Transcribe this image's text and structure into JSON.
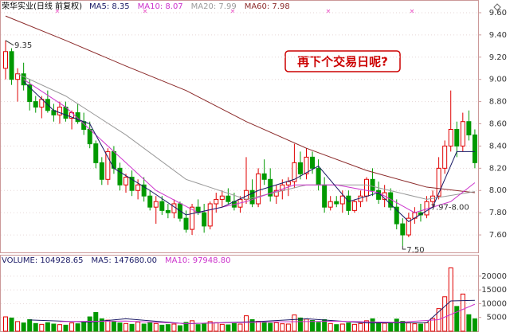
{
  "chart_data": {
    "type": "candlestick",
    "title": "荣华实业(日线 前复权)",
    "header": [
      {
        "text": "MA5: 8.35",
        "color": "#1a1a66"
      },
      {
        "text": "MA10: 8.07",
        "color": "#cc33cc"
      },
      {
        "text": "MA20: 7.99",
        "color": "#999999"
      },
      {
        "text": "MA60: 7.98",
        "color": "#8b2a2a"
      }
    ],
    "up_color": "#e00000",
    "down_color": "#009900",
    "ylim": [
      7.45,
      9.7
    ],
    "yticks": [
      {
        "value": 7.6,
        "label": "7.60"
      },
      {
        "value": 7.8,
        "label": "7.80"
      },
      {
        "value": 8.0,
        "label": "8.00"
      },
      {
        "value": 8.2,
        "label": "8.20"
      },
      {
        "value": 8.4,
        "label": "8.40"
      },
      {
        "value": 8.6,
        "label": "8.60"
      },
      {
        "value": 8.8,
        "label": "8.80"
      },
      {
        "value": 9.0,
        "label": "9.00"
      },
      {
        "value": 9.2,
        "label": "9.20"
      },
      {
        "value": 9.4,
        "label": "9.40"
      },
      {
        "value": 9.6,
        "label": "9.60"
      }
    ],
    "grid": true,
    "candles": [
      [
        9.1,
        9.35,
        9.0,
        9.25
      ],
      [
        9.25,
        9.28,
        8.95,
        9.0
      ],
      [
        9.0,
        9.1,
        8.8,
        9.05
      ],
      [
        9.05,
        9.15,
        8.9,
        8.95
      ],
      [
        8.95,
        9.0,
        8.72,
        8.8
      ],
      [
        8.8,
        8.85,
        8.7,
        8.75
      ],
      [
        8.75,
        8.85,
        8.65,
        8.82
      ],
      [
        8.82,
        8.9,
        8.7,
        8.72
      ],
      [
        8.72,
        8.78,
        8.62,
        8.68
      ],
      [
        8.68,
        8.8,
        8.6,
        8.75
      ],
      [
        8.75,
        8.8,
        8.62,
        8.65
      ],
      [
        8.65,
        8.72,
        8.55,
        8.7
      ],
      [
        8.7,
        8.78,
        8.6,
        8.62
      ],
      [
        8.62,
        8.7,
        8.5,
        8.55
      ],
      [
        8.55,
        8.62,
        8.38,
        8.42
      ],
      [
        8.42,
        8.45,
        8.2,
        8.25
      ],
      [
        8.25,
        8.3,
        8.05,
        8.1
      ],
      [
        8.1,
        8.38,
        8.05,
        8.35
      ],
      [
        8.35,
        8.4,
        8.15,
        8.2
      ],
      [
        8.2,
        8.25,
        8.0,
        8.05
      ],
      [
        8.05,
        8.15,
        7.98,
        8.12
      ],
      [
        8.12,
        8.18,
        7.95,
        8.0
      ],
      [
        8.0,
        8.1,
        7.92,
        8.05
      ],
      [
        8.05,
        8.12,
        7.9,
        7.95
      ],
      [
        7.95,
        8.0,
        7.82,
        7.85
      ],
      [
        7.85,
        7.95,
        7.7,
        7.9
      ],
      [
        7.9,
        7.95,
        7.78,
        7.82
      ],
      [
        7.82,
        7.88,
        7.75,
        7.8
      ],
      [
        7.8,
        7.92,
        7.75,
        7.88
      ],
      [
        7.88,
        7.9,
        7.72,
        7.75
      ],
      [
        7.75,
        7.82,
        7.62,
        7.65
      ],
      [
        7.65,
        7.88,
        7.6,
        7.85
      ],
      [
        7.85,
        7.92,
        7.78,
        7.8
      ],
      [
        7.8,
        7.88,
        7.62,
        7.68
      ],
      [
        7.68,
        7.9,
        7.65,
        7.88
      ],
      [
        7.88,
        7.98,
        7.8,
        7.92
      ],
      [
        7.92,
        8.0,
        7.85,
        7.95
      ],
      [
        7.95,
        8.02,
        7.88,
        7.9
      ],
      [
        7.9,
        7.98,
        7.82,
        7.85
      ],
      [
        7.85,
        7.95,
        7.8,
        7.92
      ],
      [
        7.92,
        8.3,
        7.88,
        8.0
      ],
      [
        8.0,
        8.1,
        7.85,
        7.88
      ],
      [
        7.88,
        8.2,
        7.85,
        8.15
      ],
      [
        8.15,
        8.28,
        8.05,
        8.1
      ],
      [
        8.1,
        8.2,
        7.9,
        7.95
      ],
      [
        7.95,
        8.05,
        7.88,
        8.0
      ],
      [
        8.0,
        8.1,
        7.92,
        8.05
      ],
      [
        8.05,
        8.12,
        7.95,
        8.08
      ],
      [
        8.08,
        8.42,
        8.02,
        8.25
      ],
      [
        8.25,
        8.35,
        8.1,
        8.15
      ],
      [
        8.15,
        8.38,
        8.1,
        8.3
      ],
      [
        8.3,
        8.35,
        8.15,
        8.2
      ],
      [
        8.2,
        8.28,
        8.0,
        8.05
      ],
      [
        8.05,
        8.12,
        7.8,
        7.85
      ],
      [
        7.85,
        7.95,
        7.82,
        7.9
      ],
      [
        7.9,
        7.95,
        7.85,
        7.88
      ],
      [
        7.88,
        8.0,
        7.8,
        7.95
      ],
      [
        7.95,
        8.0,
        7.78,
        7.82
      ],
      [
        7.82,
        7.92,
        7.8,
        7.9
      ],
      [
        7.9,
        8.0,
        7.85,
        7.95
      ],
      [
        7.95,
        8.12,
        7.9,
        8.1
      ],
      [
        8.1,
        8.2,
        7.95,
        8.0
      ],
      [
        8.0,
        8.08,
        7.88,
        7.92
      ],
      [
        7.92,
        8.05,
        7.85,
        7.98
      ],
      [
        7.98,
        8.02,
        7.82,
        7.85
      ],
      [
        7.85,
        7.92,
        7.65,
        7.7
      ],
      [
        7.7,
        7.75,
        7.5,
        7.6
      ],
      [
        7.6,
        7.8,
        7.58,
        7.75
      ],
      [
        7.75,
        7.85,
        7.7,
        7.8
      ],
      [
        7.8,
        7.88,
        7.72,
        7.78
      ],
      [
        7.78,
        7.95,
        7.75,
        7.9
      ],
      [
        7.9,
        8.0,
        7.85,
        7.95
      ],
      [
        7.95,
        8.3,
        7.92,
        8.2
      ],
      [
        8.2,
        8.45,
        8.15,
        8.4
      ],
      [
        8.4,
        8.9,
        8.35,
        8.55
      ],
      [
        8.55,
        8.62,
        8.3,
        8.4
      ],
      [
        8.4,
        8.7,
        8.35,
        8.62
      ],
      [
        8.62,
        8.72,
        8.45,
        8.5
      ],
      [
        8.5,
        8.55,
        8.2,
        8.25
      ]
    ],
    "lines": [
      {
        "name": "MA60",
        "color": "#8b2a2a",
        "x": [
          0,
          10,
          20,
          30,
          40,
          50,
          60,
          70,
          78
        ],
        "values": [
          9.57,
          9.35,
          9.12,
          8.9,
          8.62,
          8.38,
          8.18,
          8.03,
          7.98
        ]
      },
      {
        "name": "MA20",
        "color": "#999999",
        "x": [
          2,
          10,
          20,
          30,
          40,
          50,
          60,
          70,
          78
        ],
        "values": [
          9.05,
          8.85,
          8.5,
          8.1,
          7.92,
          8.05,
          8.05,
          7.92,
          7.99
        ]
      },
      {
        "name": "MA10",
        "color": "#cc33cc",
        "x": [
          3,
          10,
          18,
          25,
          32,
          40,
          48,
          55,
          62,
          68,
          74,
          78
        ],
        "values": [
          9.0,
          8.75,
          8.35,
          8.0,
          7.8,
          7.9,
          8.05,
          8.05,
          7.98,
          7.8,
          7.9,
          8.07
        ]
      },
      {
        "name": "MA5",
        "color": "#1a1a66",
        "x": [
          3,
          8,
          14,
          18,
          24,
          30,
          36,
          42,
          48,
          52,
          57,
          62,
          67,
          71,
          75,
          78
        ],
        "values": [
          8.98,
          8.72,
          8.6,
          8.2,
          8.0,
          7.78,
          7.85,
          8.0,
          8.1,
          8.22,
          7.9,
          7.98,
          7.72,
          7.85,
          8.35,
          8.35
        ]
      }
    ],
    "annotations": [
      {
        "text": "9.35",
        "index": 0
      },
      {
        "text": "7.50",
        "index": 66
      },
      {
        "text": "7.97-8.00",
        "index": 72
      }
    ],
    "callout": "再下个交易日呢?",
    "volume": {
      "header": [
        {
          "text": "VOLUME: 104928.65",
          "color": "#1a1a66"
        },
        {
          "text": "MA5: 147680.00",
          "color": "#1a1a66"
        },
        {
          "text": "MA10: 97948.80",
          "color": "#cc33cc"
        }
      ],
      "ylim": [
        0,
        24000
      ],
      "yticks": [
        5000,
        10000,
        15000,
        20000
      ],
      "values": [
        5200,
        4800,
        3500,
        3000,
        4200,
        2800,
        2500,
        3100,
        2600,
        2400,
        2200,
        3000,
        2700,
        3200,
        5200,
        6800,
        4500,
        4000,
        3600,
        3000,
        2800,
        2500,
        3300,
        2600,
        3000,
        2800,
        2200,
        2400,
        2600,
        2000,
        3200,
        3800,
        2400,
        2900,
        3500,
        3100,
        2500,
        2300,
        2800,
        2600,
        5600,
        4200,
        3600,
        3200,
        2900,
        3100,
        2700,
        2600,
        5900,
        4800,
        4400,
        3900,
        3200,
        4200,
        2800,
        2400,
        2600,
        3000,
        2500,
        2800,
        3800,
        4500,
        3200,
        2900,
        3100,
        4400,
        3600,
        3000,
        2700,
        2600,
        3100,
        4600,
        8200,
        12500,
        23000,
        9000,
        13500,
        6000,
        4500
      ],
      "lines": [
        {
          "name": "MA5",
          "color": "#1a1a66",
          "x": [
            4,
            14,
            20,
            30,
            42,
            50,
            60,
            70,
            74,
            78
          ],
          "values": [
            4100,
            3300,
            4500,
            2700,
            3500,
            4500,
            3000,
            3100,
            11000,
            11200
          ]
        },
        {
          "name": "MA10",
          "color": "#cc33cc",
          "x": [
            9,
            20,
            30,
            45,
            55,
            65,
            72,
            78
          ],
          "values": [
            3500,
            3700,
            2800,
            3400,
            3600,
            3200,
            4200,
            9800
          ]
        }
      ]
    }
  }
}
